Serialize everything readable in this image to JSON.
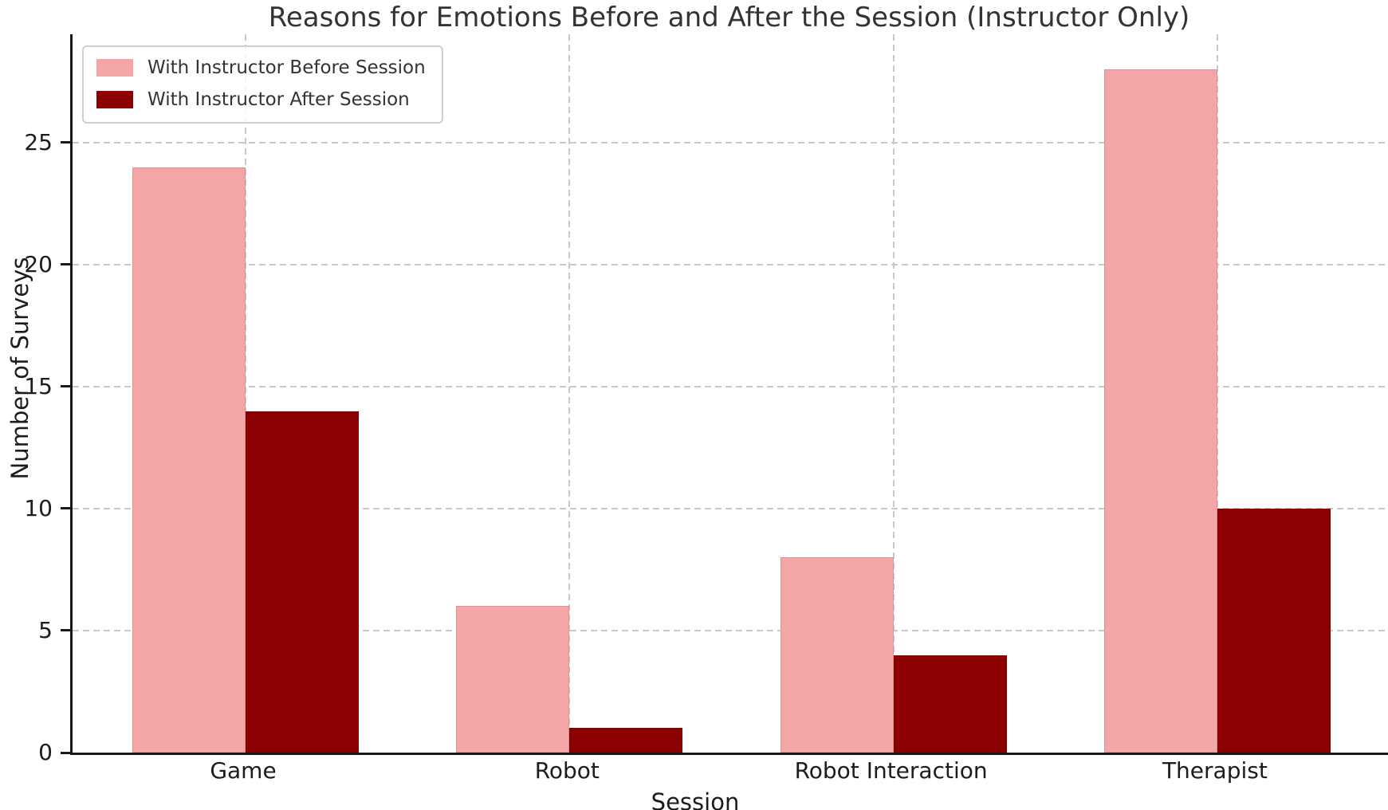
{
  "chart_data": {
    "type": "bar",
    "title": "Reasons for Emotions Before and After the Session (Instructor Only)",
    "xlabel": "Session",
    "ylabel": "Number of Surveys",
    "categories": [
      "Game",
      "Robot",
      "Robot Interaction",
      "Therapist"
    ],
    "series": [
      {
        "name": "With Instructor Before Session",
        "color": "#F4A5A5",
        "values": [
          24,
          6,
          8,
          28
        ]
      },
      {
        "name": "With Instructor After Session",
        "color": "#8B0000",
        "values": [
          14,
          1,
          4,
          10
        ]
      }
    ],
    "yticks": [
      0,
      5,
      10,
      15,
      20,
      25
    ],
    "ylim": [
      0,
      29.44
    ],
    "grid": "dashed horizontal lines at yticks, dashed vertical lines at category centers",
    "legend_position": "upper left"
  },
  "colors": {
    "before_bar": "#F4A5A5",
    "after_bar": "#8B0000",
    "gridline": "#c9c9c9",
    "spine": "#1a1a1a",
    "title_text": "#333333",
    "tick_text": "#1c1c1c",
    "legend_border": "#cfcfcf",
    "background": "#ffffff"
  }
}
